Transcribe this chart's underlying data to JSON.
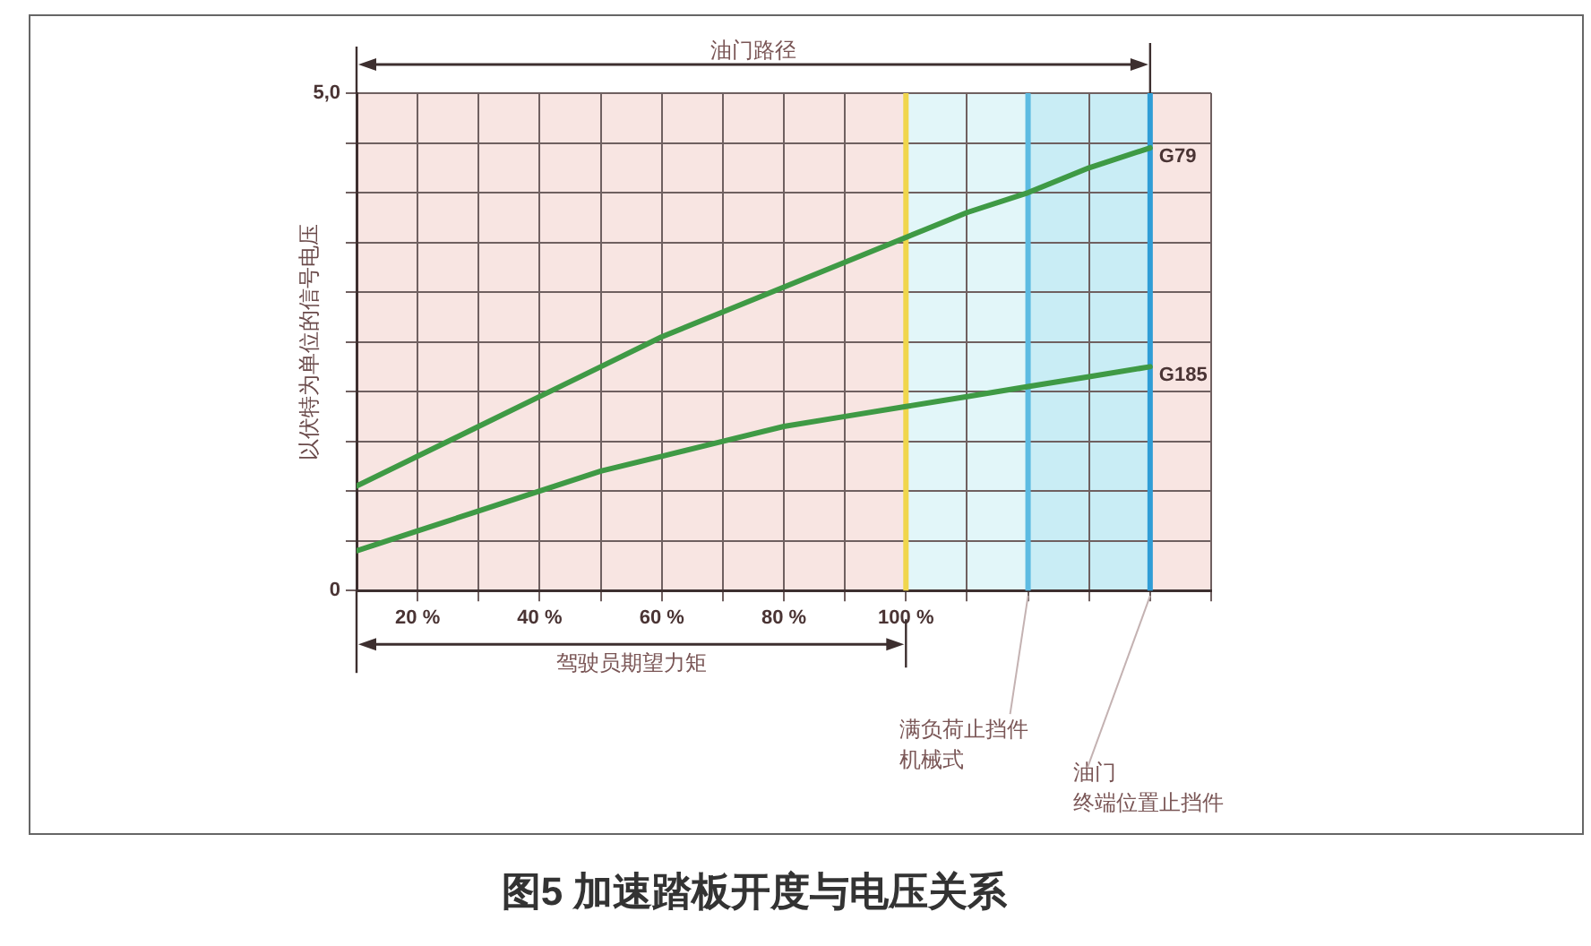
{
  "chart_data": {
    "type": "line",
    "title": "图5 加速踏板开度与电压关系",
    "ylabel": "以伏特为单位的信号电压",
    "annotations": [
      "油门路径",
      "驾驶员期望力矩"
    ],
    "x": [
      10,
      20,
      30,
      40,
      50,
      60,
      70,
      80,
      90,
      100,
      110,
      120,
      130,
      140
    ],
    "series": [
      {
        "name": "G79",
        "color": "#3f9a45",
        "values": [
          1.05,
          1.35,
          1.65,
          1.95,
          2.25,
          2.55,
          2.8,
          3.05,
          3.3,
          3.55,
          3.8,
          4.0,
          4.25,
          4.45
        ]
      },
      {
        "name": "G185",
        "color": "#3f9a45",
        "values": [
          0.4,
          0.6,
          0.8,
          1.0,
          1.2,
          1.35,
          1.5,
          1.65,
          1.75,
          1.85,
          1.95,
          2.05,
          2.15,
          2.25
        ]
      }
    ],
    "xlim": [
      10,
      150
    ],
    "ylim": [
      0,
      5
    ],
    "xticks": [
      {
        "value": 10,
        "label": null
      },
      {
        "value": 20,
        "label": "20 %"
      },
      {
        "value": 30,
        "label": null
      },
      {
        "value": 40,
        "label": "40 %"
      },
      {
        "value": 50,
        "label": null
      },
      {
        "value": 60,
        "label": "60 %"
      },
      {
        "value": 70,
        "label": null
      },
      {
        "value": 80,
        "label": "80 %"
      },
      {
        "value": 90,
        "label": null
      },
      {
        "value": 100,
        "label": "100 %"
      },
      {
        "value": 110,
        "label": null
      },
      {
        "value": 120,
        "label": null
      },
      {
        "value": 130,
        "label": null
      },
      {
        "value": 140,
        "label": null
      },
      {
        "value": 150,
        "label": null
      }
    ],
    "yticks": [
      0,
      {
        "value": 0.5,
        "label": null
      },
      {
        "value": 1,
        "label": null
      },
      {
        "value": 1.5,
        "label": null
      },
      {
        "value": 2,
        "label": null
      },
      {
        "value": 2.5,
        "label": null
      },
      {
        "value": 3,
        "label": null
      },
      {
        "value": 3.5,
        "label": null
      },
      {
        "value": 4,
        "label": null
      },
      {
        "value": 4.5,
        "label": null
      },
      {
        "value": 5,
        "label": "5,0"
      }
    ],
    "bands": [
      {
        "axis": "x",
        "from": 100,
        "to": 120,
        "color": "#e2f6f9"
      },
      {
        "axis": "x",
        "from": 120,
        "to": 140,
        "color": "#c9edf5"
      }
    ],
    "ref_lines": [
      {
        "axis": "x",
        "value": 100,
        "color": "#f0d64c"
      },
      {
        "axis": "x",
        "value": 120,
        "label": "满负荷止挡件机械式",
        "color": "#5cbbe2"
      },
      {
        "axis": "x",
        "value": 140,
        "label": "油门终端位置止挡件",
        "color": "#2f9dd6"
      }
    ],
    "grid": true,
    "legend": false,
    "marker": "none",
    "line_style": "solid"
  }
}
